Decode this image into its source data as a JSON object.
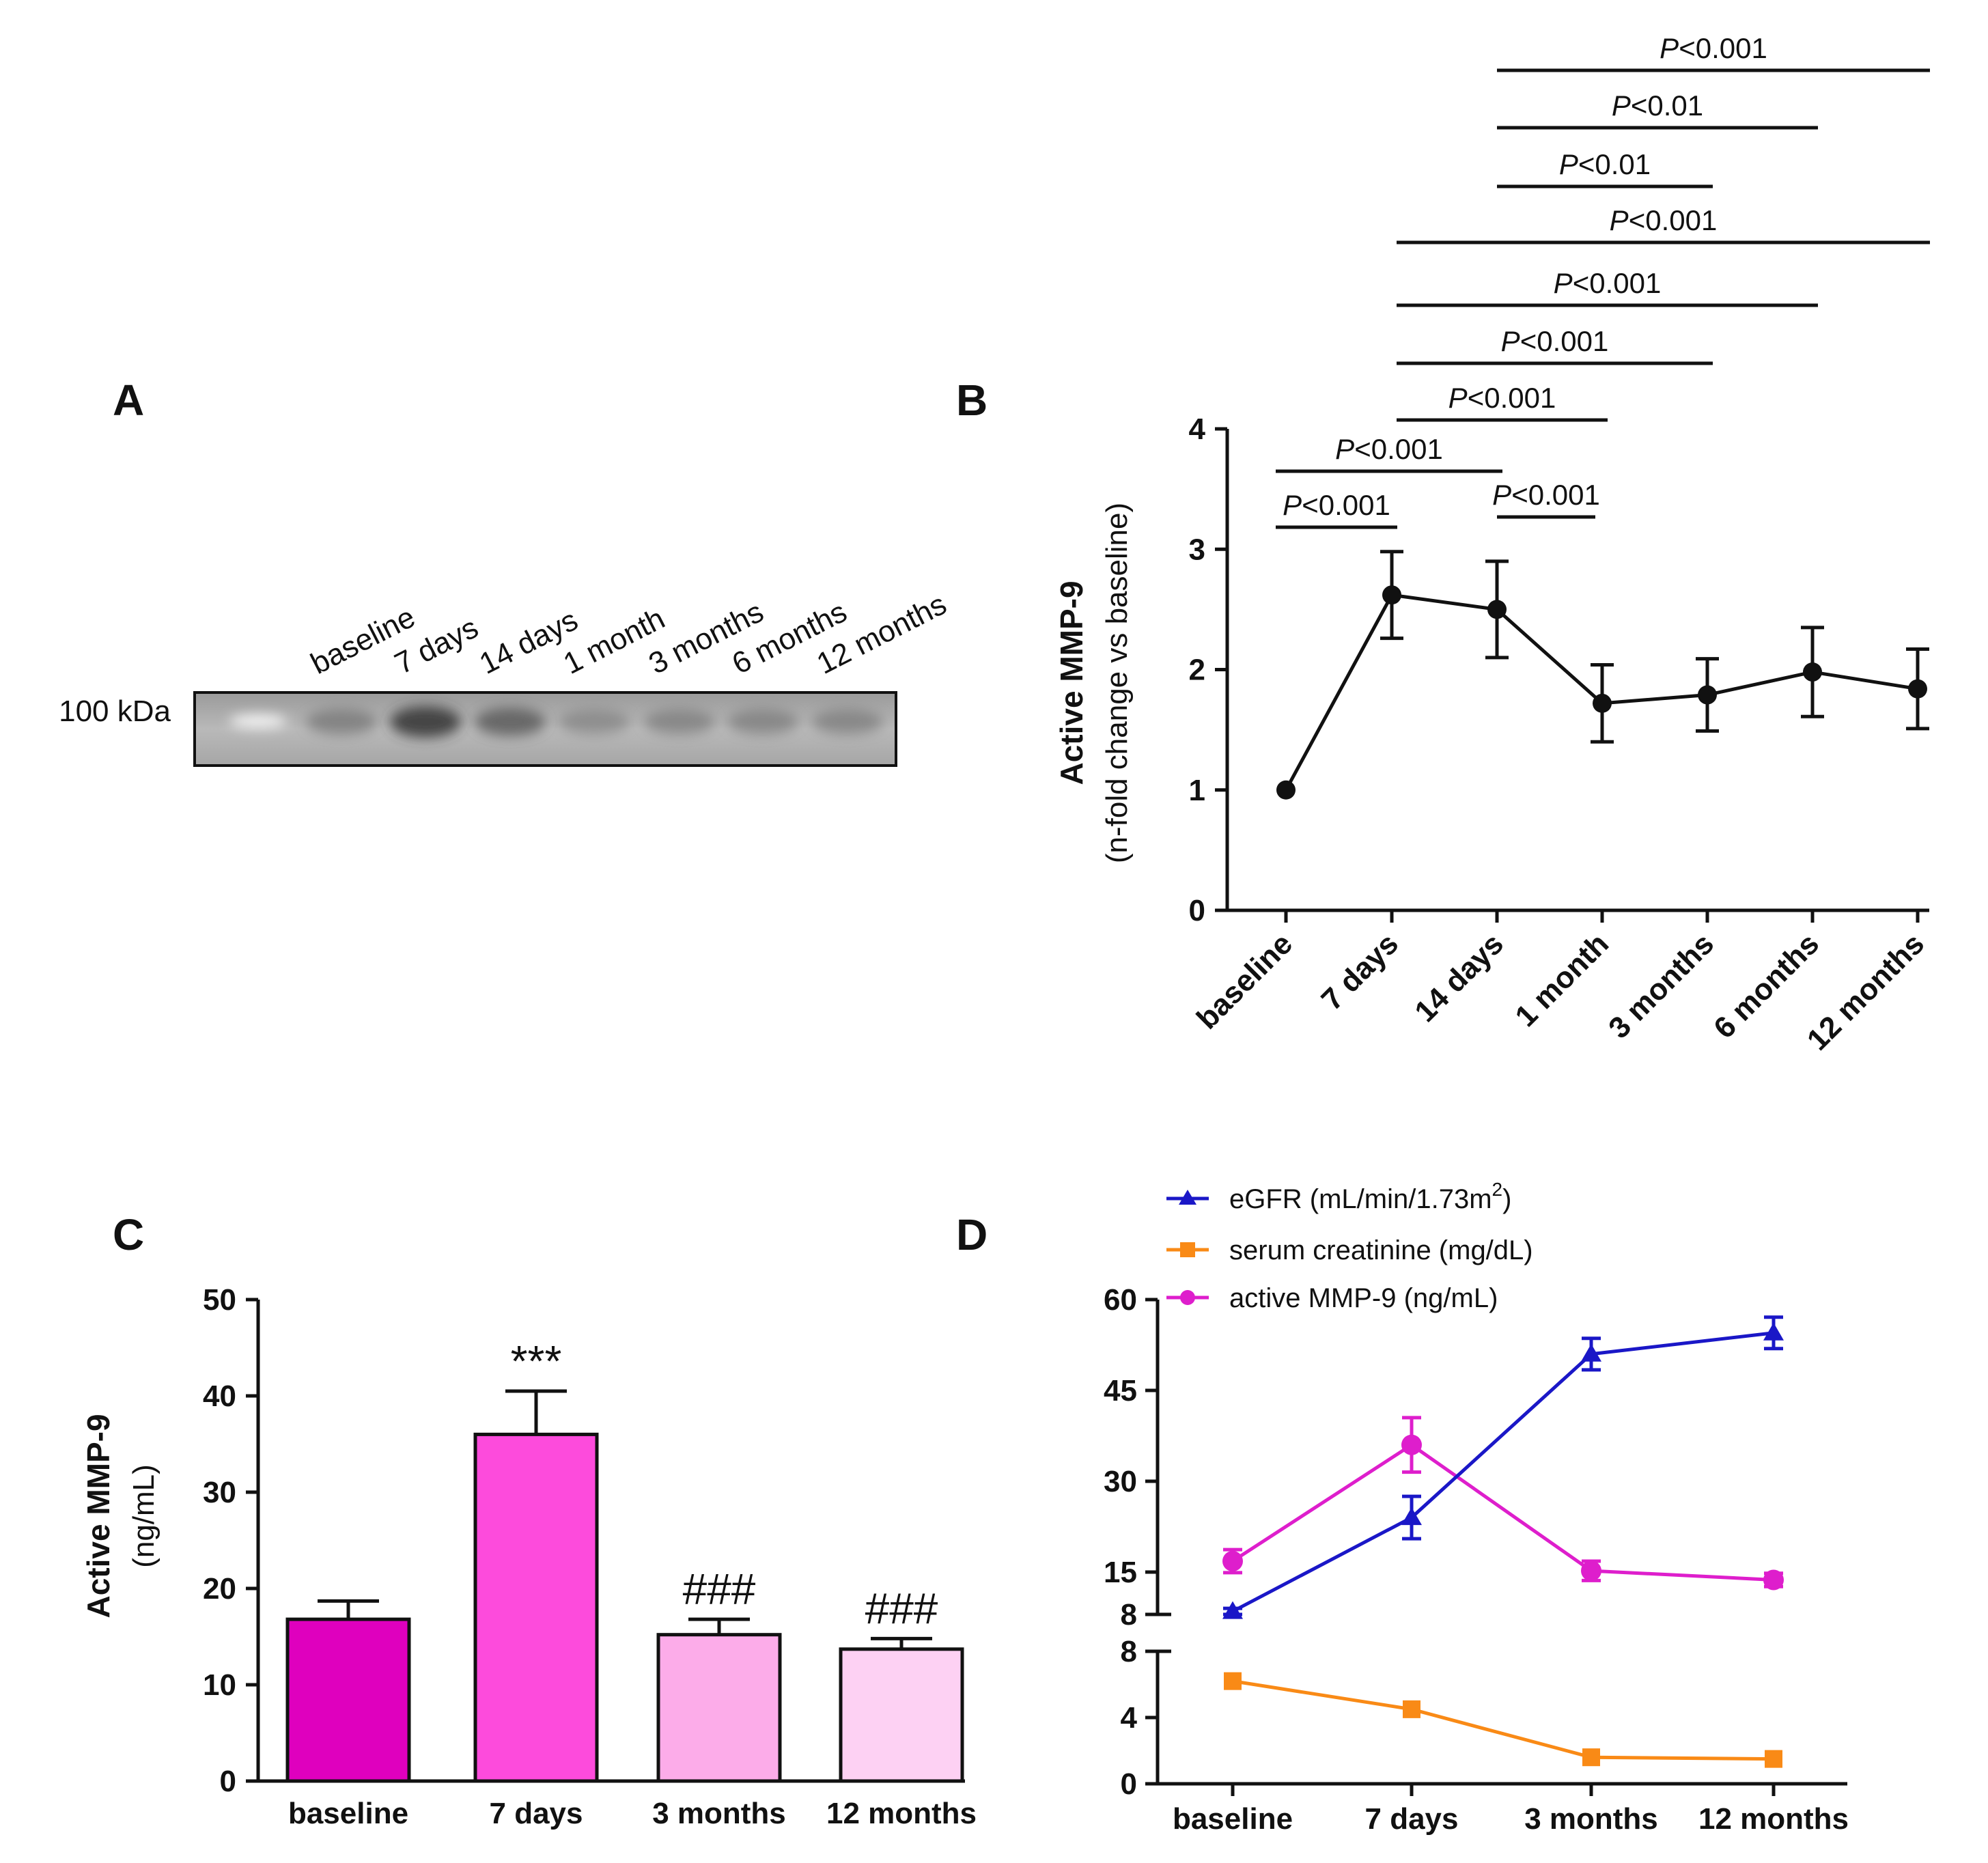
{
  "chart_data": [
    {
      "panel": "A",
      "type": "blot",
      "marker_label": "100 kDa",
      "lanes": [
        "baseline",
        "7 days",
        "14 days",
        "1 month",
        "3 months",
        "6 months",
        "12 months"
      ]
    },
    {
      "panel": "B",
      "type": "line",
      "ylabel": "Active MMP-9",
      "ylabel_sub": "(n-fold change vs baseline)",
      "categories": [
        "baseline",
        "7 days",
        "14 days",
        "1 month",
        "3 months",
        "6 months",
        "12 months"
      ],
      "values": [
        1.0,
        2.62,
        2.5,
        1.72,
        1.79,
        1.98,
        1.84
      ],
      "errors": [
        0,
        0.36,
        0.4,
        0.32,
        0.3,
        0.37,
        0.33
      ],
      "ylim": [
        0,
        4
      ],
      "yticks": [
        "0",
        "1",
        "2",
        "3",
        "4"
      ],
      "significance": [
        {
          "from": 0,
          "to": 1,
          "label": "<0.001"
        },
        {
          "from": 0,
          "to": 2,
          "label": "<0.001"
        },
        {
          "from": 2,
          "to": 3,
          "label": "<0.001"
        },
        {
          "from": 1,
          "to": 3,
          "label": "<0.001"
        },
        {
          "from": 1,
          "to": 4,
          "label": "<0.001"
        },
        {
          "from": 1,
          "to": 5,
          "label": "<0.001"
        },
        {
          "from": 1,
          "to": 6,
          "label": "<0.001"
        },
        {
          "from": 2,
          "to": 4,
          "label": "<0.01"
        },
        {
          "from": 2,
          "to": 5,
          "label": "<0.01"
        },
        {
          "from": 2,
          "to": 6,
          "label": "<0.001"
        }
      ],
      "sig_prefix": "P"
    },
    {
      "panel": "C",
      "type": "bar",
      "ylabel": "Active MMP-9",
      "ylabel_sub": "(ng/mL)",
      "categories": [
        "baseline",
        "7 days",
        "3 months",
        "12 months"
      ],
      "values": [
        16.8,
        36.0,
        15.2,
        13.7
      ],
      "errors": [
        1.9,
        4.5,
        1.6,
        1.1
      ],
      "colors": [
        "#df00be",
        "#fd4bdc",
        "#fcace9",
        "#fdd1f3"
      ],
      "annotations": [
        "",
        "***",
        "###",
        "###"
      ],
      "ylim": [
        0,
        50
      ],
      "yticks": [
        "0",
        "10",
        "20",
        "30",
        "40",
        "50"
      ]
    },
    {
      "panel": "D",
      "type": "line",
      "categories": [
        "baseline",
        "7 days",
        "3 months",
        "12 months"
      ],
      "upper_yticks": [
        "8",
        "15",
        "30",
        "45",
        "60"
      ],
      "upper_ylim": [
        8,
        60
      ],
      "lower_yticks": [
        "0",
        "4",
        "8"
      ],
      "lower_ylim": [
        0,
        8
      ],
      "series": [
        {
          "name": "eGFR (mL/min/1.73m",
          "name_sup": "2",
          "name_end": ")",
          "color": "#1a17c7",
          "marker": "triangle",
          "values": [
            8.5,
            24.0,
            51.0,
            54.5
          ],
          "errors": [
            0.5,
            3.5,
            2.6,
            2.6
          ],
          "axis": "upper"
        },
        {
          "name": "serum creatinine (mg/dL)",
          "color": "#f98a16",
          "marker": "square",
          "values": [
            6.2,
            4.5,
            1.6,
            1.5
          ],
          "errors": [
            0.2,
            0.2,
            0.1,
            0.1
          ],
          "axis": "lower"
        },
        {
          "name": "active MMP-9 (ng/mL)",
          "color": "#de1ecc",
          "marker": "circle",
          "values": [
            16.8,
            36.0,
            15.2,
            13.7
          ],
          "errors": [
            1.9,
            4.5,
            1.6,
            1.1
          ],
          "axis": "upper"
        }
      ]
    }
  ],
  "panel_labels": [
    "A",
    "B",
    "C",
    "D"
  ]
}
